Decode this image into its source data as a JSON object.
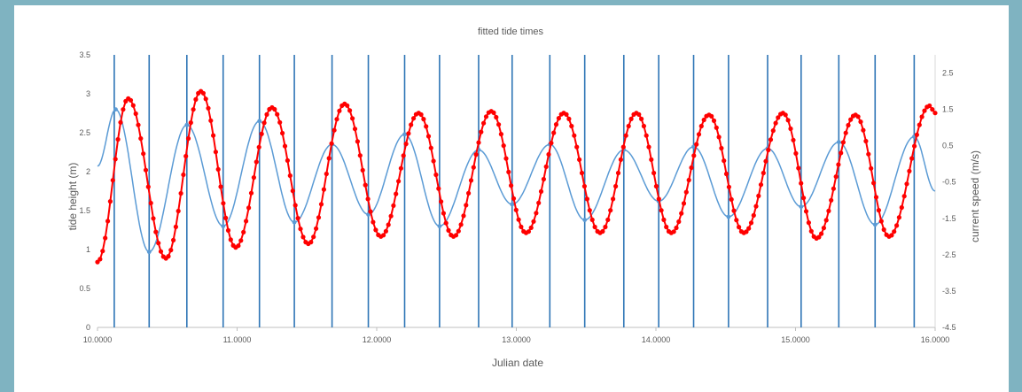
{
  "chart_data": {
    "type": "line",
    "title": "fitted tide times",
    "xlabel": "Julian date",
    "ylabel": "tide height (m)",
    "y2label": "current speed (m/s)",
    "xlim": [
      10,
      16
    ],
    "ylim": [
      0,
      3.5
    ],
    "y2lim": [
      -4.5,
      3
    ],
    "x_ticks": [
      "10.0000",
      "11.0000",
      "12.0000",
      "13.0000",
      "14.0000",
      "15.0000",
      "16.0000"
    ],
    "x_tick_values": [
      10,
      11,
      12,
      13,
      14,
      15,
      16
    ],
    "y_ticks": [
      "0",
      "0.5",
      "1",
      "1.5",
      "2",
      "2.5",
      "3",
      "3.5"
    ],
    "y_tick_values": [
      0,
      0.5,
      1,
      1.5,
      2,
      2.5,
      3,
      3.5
    ],
    "y2_ticks": [
      "-4.5",
      "-3.5",
      "-2.5",
      "-1.5",
      "-0.5",
      "0.5",
      "1.5",
      "2.5"
    ],
    "y2_tick_values": [
      -4.5,
      -3.5,
      -2.5,
      -1.5,
      -0.5,
      0.5,
      1.5,
      2.5
    ],
    "grid": false,
    "legend": "none",
    "colors": {
      "tide_height": "#5b9bd5",
      "current_speed": "#ff0000",
      "tide_times": "#2e75b6"
    },
    "series": [
      {
        "role": "tide-height",
        "axis": "left",
        "style": "line",
        "x": [
          10.0,
          10.13,
          10.37,
          10.64,
          10.9,
          11.16,
          11.41,
          11.68,
          11.94,
          12.2,
          12.45,
          12.73,
          12.97,
          13.24,
          13.49,
          13.77,
          14.02,
          14.27,
          14.52,
          14.8,
          15.04,
          15.31,
          15.57,
          15.85,
          16.0
        ],
        "y": [
          2.07,
          2.8,
          0.97,
          2.6,
          1.3,
          2.65,
          1.35,
          2.35,
          1.45,
          2.48,
          1.3,
          2.28,
          1.58,
          2.35,
          1.38,
          2.28,
          1.62,
          2.32,
          1.42,
          2.3,
          1.55,
          2.38,
          1.32,
          2.45,
          1.75
        ]
      },
      {
        "role": "current-speed",
        "axis": "right",
        "style": "markers-line",
        "x": [
          10.0,
          10.22,
          10.49,
          10.74,
          10.99,
          11.25,
          11.51,
          11.77,
          12.03,
          12.3,
          12.55,
          12.82,
          13.07,
          13.34,
          13.6,
          13.86,
          14.11,
          14.38,
          14.63,
          14.91,
          15.15,
          15.43,
          15.67,
          15.96,
          16.0
        ],
        "y": [
          -2.7,
          1.8,
          -2.6,
          2.0,
          -2.3,
          1.55,
          -2.2,
          1.65,
          -2.0,
          1.4,
          -2.0,
          1.45,
          -1.9,
          1.4,
          -1.9,
          1.4,
          -1.9,
          1.35,
          -1.9,
          1.4,
          -2.05,
          1.35,
          -2.0,
          1.6,
          1.4
        ]
      }
    ],
    "tide_time_lines": [
      10.12,
      10.37,
      10.64,
      10.9,
      11.16,
      11.41,
      11.68,
      11.94,
      12.2,
      12.45,
      12.73,
      12.97,
      13.24,
      13.49,
      13.77,
      14.02,
      14.27,
      14.52,
      14.8,
      15.04,
      15.31,
      15.57,
      15.85
    ]
  }
}
